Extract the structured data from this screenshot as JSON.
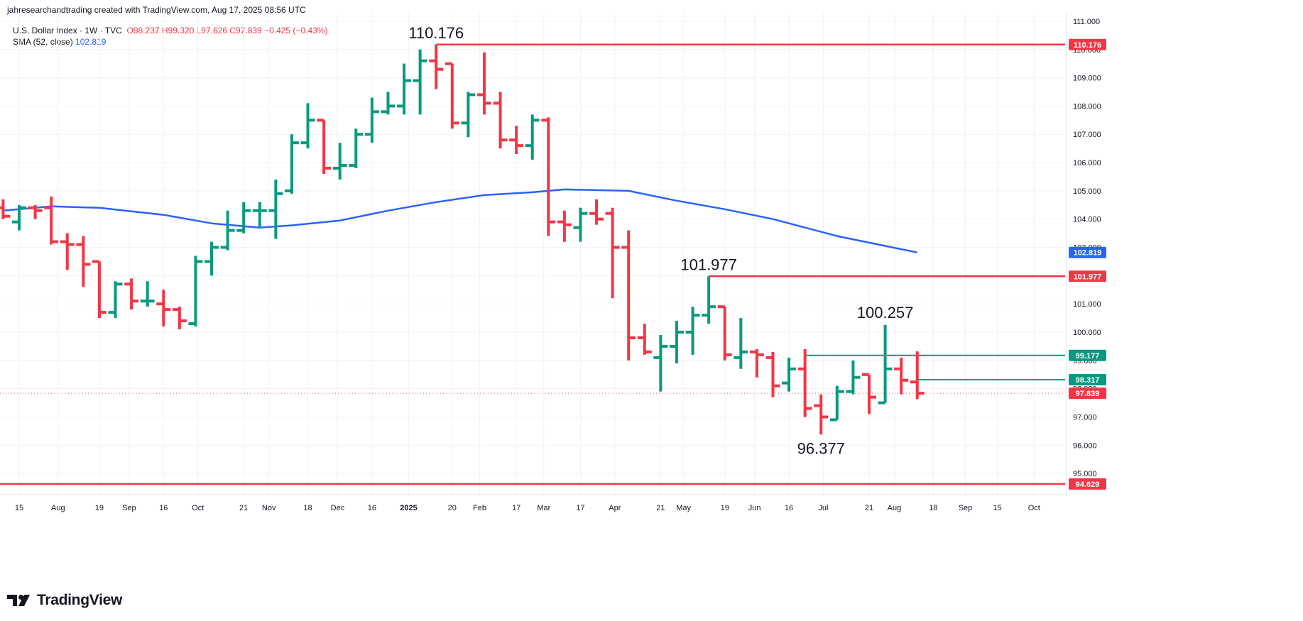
{
  "header": {
    "attribution": "jahresearchandtrading created with TradingView.com, Aug 17, 2025 08:56 UTC"
  },
  "legend": {
    "symbol": "U.S. Dollar Index · 1W · TVC",
    "open": "O98.237",
    "high": "H99.320",
    "low": "L97.626",
    "close": "C97.839",
    "change": "−0.425 (−0.43%)",
    "sma_label": "SMA (52, close)",
    "sma_value": "102.819"
  },
  "logo": {
    "text": "TradingView",
    "icon": "tradingview-logo-icon"
  },
  "colors": {
    "up": "#089981",
    "down": "#f23645",
    "sma": "#2962ff",
    "level_red": "#f23645",
    "level_green": "#089981",
    "grid": "#f0f3fa",
    "text": "#131722"
  },
  "chart_data": {
    "type": "ohlc",
    "title": "U.S. Dollar Index · 1W · TVC",
    "x_start": "2024-07-15",
    "x_end": "2025-10-13",
    "ylim": [
      94.25,
      111.3
    ],
    "grid": true,
    "price_ticks": [
      "95.000",
      "96.000",
      "97.000",
      "98.000",
      "99.000",
      "100.000",
      "101.000",
      "102.000",
      "103.000",
      "104.000",
      "105.000",
      "106.000",
      "107.000",
      "108.000",
      "109.000",
      "110.000",
      "111.000"
    ],
    "time_ticks": [
      {
        "date": "2024-07-15",
        "label": "15"
      },
      {
        "date": "2024-08-01",
        "label": "Aug"
      },
      {
        "date": "2024-08-19",
        "label": "19"
      },
      {
        "date": "2024-09-01",
        "label": "Sep"
      },
      {
        "date": "2024-09-16",
        "label": "16"
      },
      {
        "date": "2024-10-01",
        "label": "Oct"
      },
      {
        "date": "2024-10-21",
        "label": "21"
      },
      {
        "date": "2024-11-01",
        "label": "Nov"
      },
      {
        "date": "2024-11-18",
        "label": "18"
      },
      {
        "date": "2024-12-01",
        "label": "Dec"
      },
      {
        "date": "2024-12-16",
        "label": "16"
      },
      {
        "date": "2025-01-01",
        "label": "2025",
        "bold": true
      },
      {
        "date": "2025-01-20",
        "label": "20"
      },
      {
        "date": "2025-02-01",
        "label": "Feb"
      },
      {
        "date": "2025-02-17",
        "label": "17"
      },
      {
        "date": "2025-03-01",
        "label": "Mar"
      },
      {
        "date": "2025-03-17",
        "label": "17"
      },
      {
        "date": "2025-04-01",
        "label": "Apr"
      },
      {
        "date": "2025-04-21",
        "label": "21"
      },
      {
        "date": "2025-05-01",
        "label": "May"
      },
      {
        "date": "2025-05-19",
        "label": "19"
      },
      {
        "date": "2025-06-01",
        "label": "Jun"
      },
      {
        "date": "2025-06-16",
        "label": "16"
      },
      {
        "date": "2025-07-01",
        "label": "Jul"
      },
      {
        "date": "2025-07-21",
        "label": "21"
      },
      {
        "date": "2025-08-01",
        "label": "Aug"
      },
      {
        "date": "2025-08-18",
        "label": "18"
      },
      {
        "date": "2025-09-01",
        "label": "Sep"
      },
      {
        "date": "2025-09-15",
        "label": "15"
      },
      {
        "date": "2025-10-01",
        "label": "Oct"
      }
    ],
    "bars": [
      {
        "date": "2024-07-08",
        "o": 104.4,
        "h": 104.7,
        "l": 104.0,
        "c": 104.1
      },
      {
        "date": "2024-07-15",
        "o": 103.9,
        "h": 104.5,
        "l": 103.6,
        "c": 104.4
      },
      {
        "date": "2024-07-22",
        "o": 104.4,
        "h": 104.5,
        "l": 104.0,
        "c": 104.3
      },
      {
        "date": "2024-07-29",
        "o": 104.4,
        "h": 104.8,
        "l": 103.1,
        "c": 103.2
      },
      {
        "date": "2024-08-05",
        "o": 103.2,
        "h": 103.5,
        "l": 102.2,
        "c": 103.1
      },
      {
        "date": "2024-08-12",
        "o": 103.1,
        "h": 103.4,
        "l": 101.6,
        "c": 102.4
      },
      {
        "date": "2024-08-19",
        "o": 102.5,
        "h": 102.5,
        "l": 100.5,
        "c": 100.7
      },
      {
        "date": "2024-08-26",
        "o": 100.7,
        "h": 101.8,
        "l": 100.5,
        "c": 101.7
      },
      {
        "date": "2024-09-02",
        "o": 101.7,
        "h": 101.9,
        "l": 100.8,
        "c": 101.1
      },
      {
        "date": "2024-09-09",
        "o": 101.1,
        "h": 101.8,
        "l": 100.9,
        "c": 101.1
      },
      {
        "date": "2024-09-16",
        "o": 101.0,
        "h": 101.5,
        "l": 100.2,
        "c": 100.8
      },
      {
        "date": "2024-09-23",
        "o": 100.8,
        "h": 100.9,
        "l": 100.1,
        "c": 100.4
      },
      {
        "date": "2024-09-30",
        "o": 100.3,
        "h": 102.7,
        "l": 100.2,
        "c": 102.5
      },
      {
        "date": "2024-10-07",
        "o": 102.5,
        "h": 103.2,
        "l": 102.0,
        "c": 103.0
      },
      {
        "date": "2024-10-14",
        "o": 103.0,
        "h": 104.3,
        "l": 102.9,
        "c": 103.6
      },
      {
        "date": "2024-10-21",
        "o": 103.6,
        "h": 104.6,
        "l": 103.5,
        "c": 104.3
      },
      {
        "date": "2024-10-28",
        "o": 104.3,
        "h": 104.6,
        "l": 103.7,
        "c": 104.3
      },
      {
        "date": "2024-11-04",
        "o": 104.3,
        "h": 105.4,
        "l": 103.3,
        "c": 104.9
      },
      {
        "date": "2024-11-11",
        "o": 105.0,
        "h": 107.0,
        "l": 104.9,
        "c": 106.7
      },
      {
        "date": "2024-11-18",
        "o": 106.7,
        "h": 108.1,
        "l": 106.5,
        "c": 107.5
      },
      {
        "date": "2024-11-25",
        "o": 107.5,
        "h": 107.5,
        "l": 105.6,
        "c": 105.8
      },
      {
        "date": "2024-12-02",
        "o": 105.8,
        "h": 106.7,
        "l": 105.4,
        "c": 105.9
      },
      {
        "date": "2024-12-09",
        "o": 105.9,
        "h": 107.2,
        "l": 105.8,
        "c": 107.0
      },
      {
        "date": "2024-12-16",
        "o": 107.0,
        "h": 108.3,
        "l": 106.7,
        "c": 107.8
      },
      {
        "date": "2024-12-23",
        "o": 107.8,
        "h": 108.5,
        "l": 107.7,
        "c": 108.0
      },
      {
        "date": "2024-12-30",
        "o": 108.0,
        "h": 109.5,
        "l": 107.7,
        "c": 108.9
      },
      {
        "date": "2025-01-06",
        "o": 108.9,
        "h": 110.0,
        "l": 107.7,
        "c": 109.6
      },
      {
        "date": "2025-01-13",
        "o": 109.6,
        "h": 110.176,
        "l": 108.6,
        "c": 109.3
      },
      {
        "date": "2025-01-20",
        "o": 109.5,
        "h": 109.5,
        "l": 107.2,
        "c": 107.4
      },
      {
        "date": "2025-01-27",
        "o": 107.4,
        "h": 108.5,
        "l": 106.9,
        "c": 108.4
      },
      {
        "date": "2025-02-03",
        "o": 108.4,
        "h": 109.9,
        "l": 107.7,
        "c": 108.1
      },
      {
        "date": "2025-02-10",
        "o": 108.1,
        "h": 108.5,
        "l": 106.5,
        "c": 106.8
      },
      {
        "date": "2025-02-17",
        "o": 106.8,
        "h": 107.3,
        "l": 106.3,
        "c": 106.6
      },
      {
        "date": "2025-02-24",
        "o": 106.6,
        "h": 107.7,
        "l": 106.1,
        "c": 107.5
      },
      {
        "date": "2025-03-03",
        "o": 107.5,
        "h": 107.6,
        "l": 103.4,
        "c": 103.9
      },
      {
        "date": "2025-03-10",
        "o": 103.9,
        "h": 104.3,
        "l": 103.2,
        "c": 103.8
      },
      {
        "date": "2025-03-17",
        "o": 103.7,
        "h": 104.4,
        "l": 103.2,
        "c": 104.2
      },
      {
        "date": "2025-03-24",
        "o": 104.2,
        "h": 104.7,
        "l": 103.8,
        "c": 104.0
      },
      {
        "date": "2025-03-31",
        "o": 104.2,
        "h": 104.4,
        "l": 101.2,
        "c": 103.0
      },
      {
        "date": "2025-04-07",
        "o": 103.0,
        "h": 103.6,
        "l": 99.0,
        "c": 99.8
      },
      {
        "date": "2025-04-14",
        "o": 99.8,
        "h": 100.3,
        "l": 99.2,
        "c": 99.3
      },
      {
        "date": "2025-04-21",
        "o": 99.1,
        "h": 99.9,
        "l": 97.9,
        "c": 99.5
      },
      {
        "date": "2025-04-28",
        "o": 99.5,
        "h": 100.4,
        "l": 98.9,
        "c": 100.0
      },
      {
        "date": "2025-05-05",
        "o": 100.0,
        "h": 100.9,
        "l": 99.2,
        "c": 100.6
      },
      {
        "date": "2025-05-12",
        "o": 100.6,
        "h": 101.977,
        "l": 100.3,
        "c": 100.9
      },
      {
        "date": "2025-05-19",
        "o": 100.9,
        "h": 100.9,
        "l": 99.0,
        "c": 99.2
      },
      {
        "date": "2025-05-26",
        "o": 99.1,
        "h": 100.5,
        "l": 98.7,
        "c": 99.3
      },
      {
        "date": "2025-06-02",
        "o": 99.3,
        "h": 99.4,
        "l": 98.4,
        "c": 99.2
      },
      {
        "date": "2025-06-09",
        "o": 99.1,
        "h": 99.3,
        "l": 97.7,
        "c": 98.1
      },
      {
        "date": "2025-06-16",
        "o": 98.2,
        "h": 99.1,
        "l": 97.9,
        "c": 98.7
      },
      {
        "date": "2025-06-23",
        "o": 98.7,
        "h": 99.4,
        "l": 97.0,
        "c": 97.3
      },
      {
        "date": "2025-06-30",
        "o": 97.4,
        "h": 97.8,
        "l": 96.377,
        "c": 97.0
      },
      {
        "date": "2025-07-07",
        "o": 96.9,
        "h": 98.1,
        "l": 96.9,
        "c": 97.9
      },
      {
        "date": "2025-07-14",
        "o": 97.9,
        "h": 99.0,
        "l": 97.8,
        "c": 98.4
      },
      {
        "date": "2025-07-21",
        "o": 98.5,
        "h": 98.5,
        "l": 97.1,
        "c": 97.7
      },
      {
        "date": "2025-07-28",
        "o": 97.5,
        "h": 100.257,
        "l": 97.5,
        "c": 98.7
      },
      {
        "date": "2025-08-04",
        "o": 98.7,
        "h": 99.1,
        "l": 97.8,
        "c": 98.3
      },
      {
        "date": "2025-08-11",
        "o": 98.237,
        "h": 99.32,
        "l": 97.626,
        "c": 97.839
      }
    ],
    "sma": {
      "name": "SMA (52, close)",
      "points": [
        {
          "date": "2024-07-08",
          "v": 104.3
        },
        {
          "date": "2024-07-29",
          "v": 104.45
        },
        {
          "date": "2024-08-19",
          "v": 104.4
        },
        {
          "date": "2024-09-16",
          "v": 104.15
        },
        {
          "date": "2024-10-07",
          "v": 103.85
        },
        {
          "date": "2024-10-28",
          "v": 103.7
        },
        {
          "date": "2024-11-11",
          "v": 103.78
        },
        {
          "date": "2024-12-02",
          "v": 103.95
        },
        {
          "date": "2024-12-23",
          "v": 104.3
        },
        {
          "date": "2025-01-13",
          "v": 104.6
        },
        {
          "date": "2025-02-03",
          "v": 104.85
        },
        {
          "date": "2025-02-24",
          "v": 104.95
        },
        {
          "date": "2025-03-10",
          "v": 105.05
        },
        {
          "date": "2025-04-07",
          "v": 105.0
        },
        {
          "date": "2025-04-28",
          "v": 104.65
        },
        {
          "date": "2025-05-19",
          "v": 104.35
        },
        {
          "date": "2025-06-09",
          "v": 104.0
        },
        {
          "date": "2025-07-07",
          "v": 103.4
        },
        {
          "date": "2025-07-28",
          "v": 103.05
        },
        {
          "date": "2025-08-11",
          "v": 102.819
        }
      ]
    },
    "levels": [
      {
        "value": 110.176,
        "color": "red",
        "from": "2025-01-13",
        "label": "110.176",
        "annotation": "110.176"
      },
      {
        "value": 101.977,
        "color": "red",
        "from": "2025-05-12",
        "label": "101.977",
        "annotation": "101.977"
      },
      {
        "value": 94.629,
        "color": "red",
        "from": "2024-07-01",
        "label": "94.629"
      },
      {
        "value": 99.177,
        "color": "green",
        "from": "2025-06-23",
        "label": "99.177"
      },
      {
        "value": 98.317,
        "color": "green",
        "from": "2025-08-11",
        "label": "98.317"
      }
    ],
    "annotations": [
      {
        "text": "100.257",
        "value": 100.257,
        "date": "2025-07-28",
        "position": "above"
      },
      {
        "text": "96.377",
        "value": 96.377,
        "date": "2025-06-30",
        "position": "below"
      }
    ],
    "price_labels": [
      {
        "value": 102.819,
        "text": "102.819",
        "color": "blue"
      },
      {
        "value": 97.839,
        "text": "97.839",
        "color": "red",
        "dotted": true
      }
    ]
  }
}
